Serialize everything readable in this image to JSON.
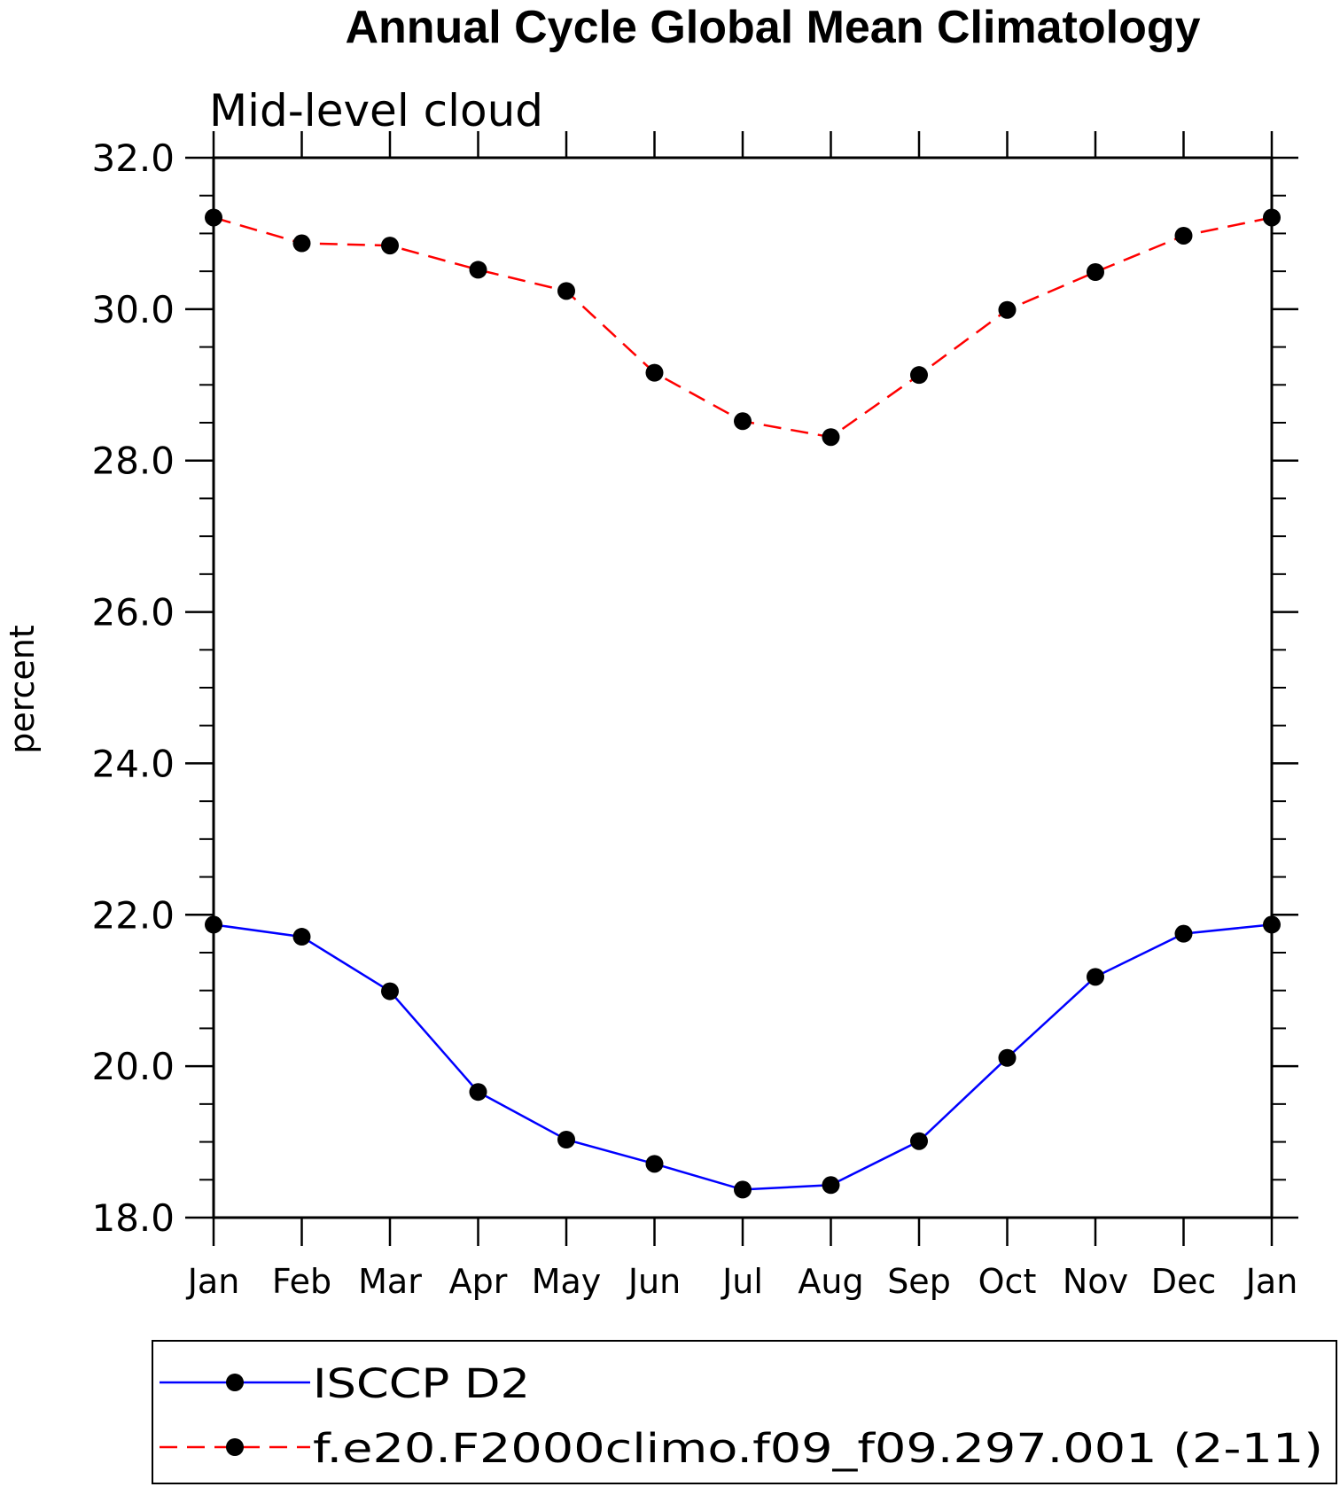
{
  "chart_data": {
    "type": "line",
    "title": "Annual Cycle Global Mean Climatology",
    "subtitle": "Mid-level cloud",
    "xlabel": "",
    "ylabel": "percent",
    "categories": [
      "Jan",
      "Feb",
      "Mar",
      "Apr",
      "May",
      "Jun",
      "Jul",
      "Aug",
      "Sep",
      "Oct",
      "Nov",
      "Dec",
      "Jan"
    ],
    "ylim": [
      18.0,
      32.0
    ],
    "yticks": [
      "18.0",
      "20.0",
      "22.0",
      "24.0",
      "26.0",
      "28.0",
      "30.0",
      "32.0"
    ],
    "ytick_values": [
      18,
      20,
      22,
      24,
      26,
      28,
      30,
      32
    ],
    "grid": false,
    "legend_position": "bottom",
    "series": [
      {
        "name": "ISCCP D2",
        "color": "#0000ff",
        "line_style": "solid",
        "marker": "filled-circle",
        "values": [
          21.87,
          21.71,
          20.99,
          19.66,
          19.03,
          18.71,
          18.37,
          18.43,
          19.01,
          20.11,
          21.18,
          21.75,
          21.87
        ]
      },
      {
        "name": "f.e20.F2000climo.f09_f09.297.001 (2-11)",
        "color": "#ff0000",
        "line_style": "dashed",
        "marker": "filled-circle",
        "values": [
          31.21,
          30.87,
          30.84,
          30.52,
          30.24,
          29.16,
          28.52,
          28.31,
          29.13,
          29.99,
          30.49,
          30.97,
          31.21
        ]
      }
    ]
  }
}
